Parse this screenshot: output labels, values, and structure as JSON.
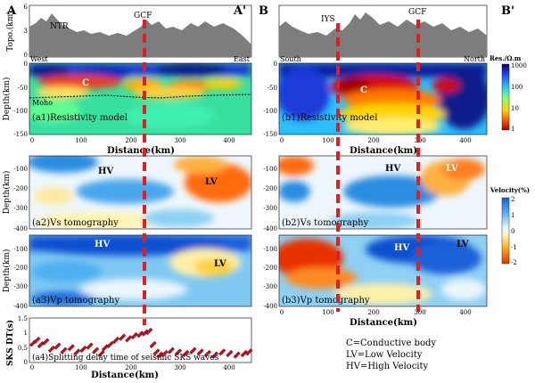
{
  "profiles": {
    "left_start": "A",
    "left_end": "A'",
    "right_start": "B",
    "right_end": "B'"
  },
  "faults": {
    "gcf": "GCF",
    "iys": "IYS",
    "ntr": "NTR"
  },
  "topo": {
    "ylabel": "Topo.(km)",
    "ticks": [
      "6",
      "3",
      "0"
    ],
    "left_west": "West",
    "left_east": "East",
    "right_south": "South",
    "right_north": "North"
  },
  "resistivity": {
    "ylabel": "Depth(km)",
    "yticks": [
      "0",
      "-50",
      "-100",
      "-150"
    ],
    "xticks": [
      "0",
      "100",
      "200",
      "300",
      "400"
    ],
    "xlabel": "Distance(km)",
    "left_caption": "(a1)Resistivity model",
    "right_caption": "(b1)Resistivity model",
    "conductor": "C",
    "moho": "Moho",
    "colorbar_title": "Res./Ω.m",
    "colorbar_ticks": [
      "1000",
      "100",
      "10",
      "1"
    ]
  },
  "vs": {
    "ylabel": "Depth(km)",
    "yticks": [
      "-100",
      "-200",
      "-300",
      "-400"
    ],
    "left_caption": "(a2)Vs tomography",
    "right_caption": "(b2)Vs tomography",
    "hv": "HV",
    "lv": "LV"
  },
  "vp": {
    "ylabel": "Depth(km)",
    "yticks": [
      "-100",
      "-200",
      "-300",
      "-400"
    ],
    "xticks": [
      "0",
      "100",
      "200",
      "300",
      "400"
    ],
    "xlabel": "Distance(km)",
    "left_caption": "(a3)Vp tomography",
    "right_caption": "(b3)Vp tomography",
    "hv": "HV",
    "lv": "LV"
  },
  "velocity_colorbar": {
    "title": "Velocity(%)",
    "ticks": [
      "2",
      "1",
      "0",
      "-1",
      "-2"
    ]
  },
  "sks": {
    "ylabel": "SKS DT(s)",
    "yticks": [
      "1.5",
      "1",
      "0.5",
      "0"
    ],
    "xticks": [
      "0",
      "100",
      "200",
      "300",
      "400"
    ],
    "xlabel": "Distance(km)",
    "caption": "(a4)Splitting delay time of seismic SKS waves"
  },
  "legend": {
    "c": "C=Conductive body",
    "lv": "LV=Low Velocity",
    "hv": "HV=High Velocity"
  },
  "chart_data": {
    "type": "scatter",
    "title": "(a4)Splitting delay time of seismic SKS waves",
    "xlabel": "Distance(km)",
    "ylabel": "SKS DT(s)",
    "xlim": [
      0,
      450
    ],
    "ylim": [
      0,
      1.5
    ],
    "x": [
      2,
      10,
      18,
      28,
      40,
      52,
      65,
      80,
      92,
      105,
      118,
      130,
      142,
      150,
      160,
      172,
      185,
      198,
      210,
      222,
      232,
      240,
      248,
      255,
      262,
      272,
      285,
      300,
      315,
      330,
      345,
      360,
      375,
      390,
      405,
      420,
      435,
      445
    ],
    "y": [
      0.65,
      0.75,
      0.6,
      0.7,
      0.45,
      0.55,
      0.4,
      0.5,
      0.35,
      0.45,
      0.55,
      0.4,
      0.3,
      0.5,
      0.6,
      0.75,
      0.85,
      0.8,
      0.9,
      0.95,
      1.0,
      1.05,
      0.6,
      0.35,
      0.25,
      0.3,
      0.4,
      0.35,
      0.3,
      0.4,
      0.35,
      0.3,
      0.25,
      0.35,
      0.3,
      0.25,
      0.3,
      0.35
    ]
  }
}
